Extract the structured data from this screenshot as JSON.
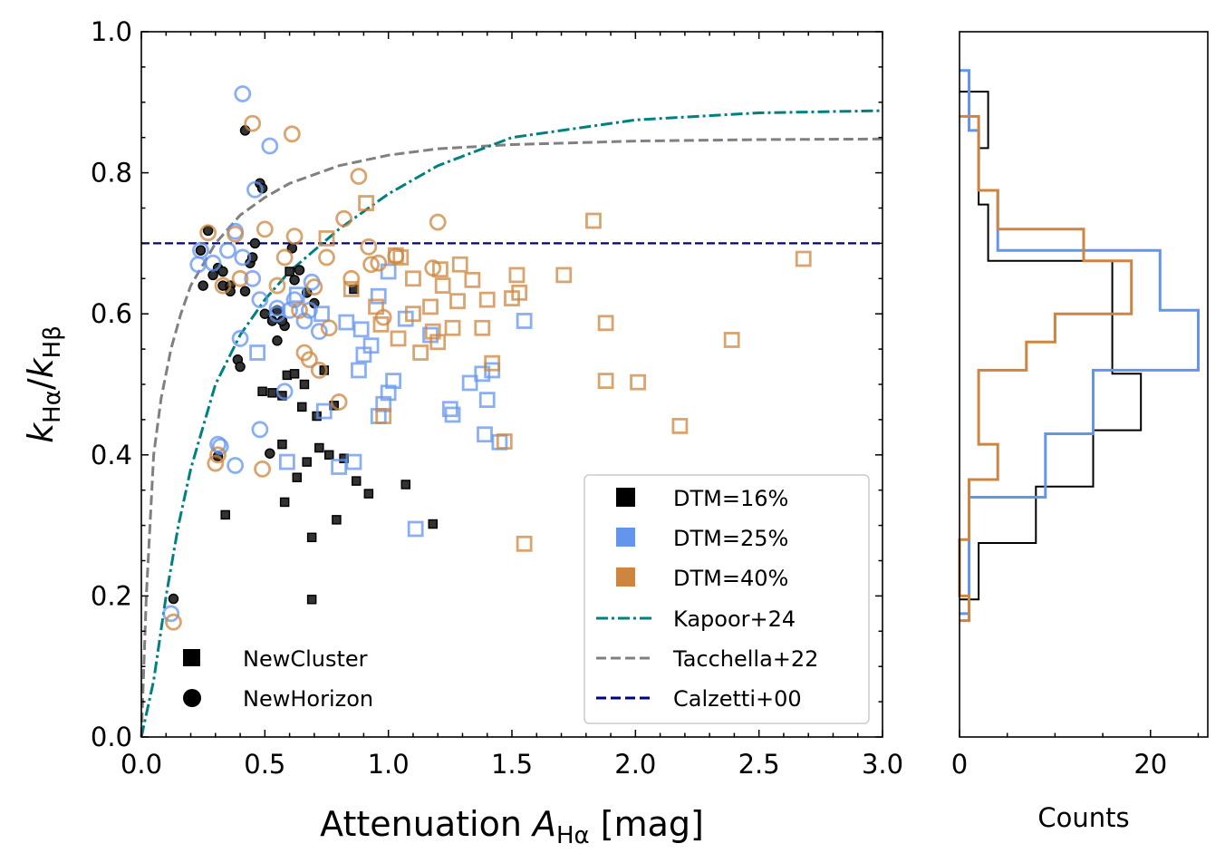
{
  "chart_data": {
    "type": "scatter",
    "xlabel": "Attenuation A_Hα [mag]",
    "ylabel": "k_Hα/k_Hβ",
    "xlabel_parts": {
      "prefix": "Attenuation ",
      "var": "A",
      "sub": "Hα",
      "suffix": " [mag]"
    },
    "ylabel_parts": {
      "k1": "k",
      "sub1": "Hα",
      "slash": "/",
      "k2": "k",
      "sub2": "Hβ"
    },
    "xlim": [
      0.0,
      3.0
    ],
    "ylim": [
      0.0,
      1.0
    ],
    "xticks": [
      "0.0",
      "0.5",
      "1.0",
      "1.5",
      "2.0",
      "2.5",
      "3.0"
    ],
    "yticks": [
      "0.0",
      "0.2",
      "0.4",
      "0.6",
      "0.8",
      "1.0"
    ],
    "colors": {
      "dtm16": "#000000",
      "dtm25": "#6495ED",
      "dtm40": "#CD853F",
      "kapoor": "#008080",
      "tacchella": "#808080",
      "calzetti": "#000080"
    },
    "legend_right": [
      {
        "label": "DTM=16%",
        "kind": "square",
        "color": "#000000"
      },
      {
        "label": "DTM=25%",
        "kind": "square",
        "color": "#6495ED"
      },
      {
        "label": "DTM=40%",
        "kind": "square",
        "color": "#CD853F"
      },
      {
        "label": "Kapoor+24",
        "kind": "dashdot",
        "color": "#008080"
      },
      {
        "label": "Tacchella+22",
        "kind": "dashed",
        "color": "#808080"
      },
      {
        "label": "Calzetti+00",
        "kind": "dashed",
        "color": "#000080"
      }
    ],
    "legend_left": [
      {
        "label": "NewCluster",
        "kind": "square"
      },
      {
        "label": "NewHorizon",
        "kind": "circle"
      }
    ],
    "reference_curves": {
      "calzetti_constant": 0.7,
      "kapoor": {
        "x": [
          0.0,
          0.05,
          0.1,
          0.15,
          0.2,
          0.3,
          0.4,
          0.5,
          0.6,
          0.8,
          1.0,
          1.2,
          1.5,
          2.0,
          2.5,
          3.0
        ],
        "y": [
          0.0,
          0.08,
          0.2,
          0.3,
          0.38,
          0.5,
          0.57,
          0.62,
          0.66,
          0.72,
          0.77,
          0.81,
          0.85,
          0.875,
          0.885,
          0.888
        ]
      },
      "tacchella": {
        "x": [
          0.0,
          0.02,
          0.05,
          0.08,
          0.12,
          0.16,
          0.2,
          0.3,
          0.4,
          0.5,
          0.6,
          0.8,
          1.0,
          1.2,
          1.5,
          2.0,
          2.5,
          3.0
        ],
        "y": [
          0.0,
          0.2,
          0.4,
          0.48,
          0.55,
          0.6,
          0.64,
          0.7,
          0.74,
          0.765,
          0.785,
          0.81,
          0.825,
          0.834,
          0.84,
          0.845,
          0.847,
          0.848
        ]
      }
    },
    "series": [
      {
        "name": "DTM=16%",
        "sim": "NewCluster",
        "marker": "square",
        "color": "#000000",
        "x": [
          0.34,
          0.49,
          0.53,
          0.57,
          0.59,
          0.62,
          0.65,
          0.71,
          0.76,
          0.78,
          0.69,
          0.72,
          0.63,
          0.67,
          0.87,
          0.92,
          0.79,
          0.58,
          0.69,
          1.07,
          1.18,
          0.86,
          0.82,
          0.57,
          0.74,
          0.6,
          0.66
        ],
        "y": [
          0.315,
          0.49,
          0.488,
          0.484,
          0.513,
          0.515,
          0.468,
          0.455,
          0.4,
          0.47,
          0.283,
          0.41,
          0.368,
          0.39,
          0.363,
          0.345,
          0.308,
          0.333,
          0.195,
          0.358,
          0.302,
          0.635,
          0.395,
          0.415,
          0.52,
          0.66,
          0.5
        ]
      },
      {
        "name": "DTM=16%",
        "sim": "NewHorizon",
        "marker": "circle",
        "color": "#000000",
        "x": [
          0.13,
          0.24,
          0.25,
          0.27,
          0.31,
          0.33,
          0.36,
          0.39,
          0.4,
          0.42,
          0.44,
          0.48,
          0.5,
          0.53,
          0.55,
          0.58,
          0.61,
          0.64,
          0.67,
          0.7,
          0.46,
          0.42,
          0.45,
          0.52,
          0.57,
          0.62,
          0.33,
          0.36,
          0.29,
          0.49,
          0.31,
          0.55
        ],
        "y": [
          0.196,
          0.69,
          0.64,
          0.718,
          0.665,
          0.64,
          0.64,
          0.535,
          0.525,
          0.632,
          0.672,
          0.785,
          0.6,
          0.59,
          0.605,
          0.583,
          0.693,
          0.662,
          0.63,
          0.615,
          0.7,
          0.86,
          0.68,
          0.402,
          0.59,
          0.648,
          0.66,
          0.632,
          0.655,
          0.778,
          0.398,
          0.562
        ]
      },
      {
        "name": "DTM=25%",
        "sim": "NewCluster",
        "marker": "square",
        "color": "#6495ED",
        "x": [
          0.47,
          0.59,
          0.63,
          0.73,
          0.8,
          0.86,
          0.89,
          0.93,
          0.96,
          1.0,
          1.02,
          1.07,
          1.11,
          1.26,
          1.33,
          1.39,
          1.4,
          1.45,
          1.55,
          0.74,
          0.83,
          0.9,
          1.0,
          0.98,
          0.96,
          0.88,
          1.25,
          1.38,
          1.17,
          1.42
        ],
        "y": [
          0.545,
          0.39,
          0.627,
          0.6,
          0.383,
          0.39,
          0.578,
          0.555,
          0.625,
          0.66,
          0.505,
          0.593,
          0.295,
          0.457,
          0.502,
          0.429,
          0.478,
          0.418,
          0.59,
          0.462,
          0.588,
          0.542,
          0.488,
          0.472,
          0.455,
          0.52,
          0.465,
          0.515,
          0.57,
          0.52
        ]
      },
      {
        "name": "DTM=25%",
        "sim": "NewHorizon",
        "marker": "circle",
        "color": "#6495ED",
        "x": [
          0.12,
          0.23,
          0.24,
          0.29,
          0.32,
          0.35,
          0.38,
          0.4,
          0.41,
          0.45,
          0.46,
          0.48,
          0.52,
          0.55,
          0.58,
          0.6,
          0.62,
          0.66,
          0.68,
          0.72,
          0.31,
          0.38,
          0.48,
          0.41,
          0.55,
          0.69
        ],
        "y": [
          0.175,
          0.67,
          0.69,
          0.672,
          0.412,
          0.69,
          0.385,
          0.565,
          0.912,
          0.65,
          0.776,
          0.436,
          0.838,
          0.608,
          0.49,
          0.605,
          0.62,
          0.59,
          0.605,
          0.575,
          0.415,
          0.717,
          0.62,
          0.68,
          0.6,
          0.645
        ]
      },
      {
        "name": "DTM=40%",
        "sim": "NewCluster",
        "marker": "square",
        "color": "#CD853F",
        "x": [
          0.75,
          0.85,
          0.91,
          0.95,
          0.98,
          1.03,
          1.04,
          1.1,
          1.13,
          1.17,
          1.18,
          1.21,
          1.26,
          1.29,
          1.34,
          1.38,
          1.42,
          1.5,
          1.52,
          1.53,
          1.71,
          1.83,
          1.88,
          1.88,
          2.01,
          2.18,
          2.39,
          2.68,
          1.55,
          1.47,
          1.05,
          1.2,
          1.4,
          1.28,
          0.97,
          1.1,
          1.22
        ],
        "y": [
          0.707,
          0.635,
          0.757,
          0.61,
          0.455,
          0.683,
          0.565,
          0.65,
          0.545,
          0.61,
          0.575,
          0.663,
          0.58,
          0.67,
          0.648,
          0.58,
          0.53,
          0.622,
          0.655,
          0.63,
          0.655,
          0.732,
          0.587,
          0.505,
          0.503,
          0.441,
          0.563,
          0.678,
          0.274,
          0.419,
          0.68,
          0.56,
          0.62,
          0.618,
          0.585,
          0.6,
          0.64
        ]
      },
      {
        "name": "DTM=40%",
        "sim": "NewHorizon",
        "marker": "circle",
        "color": "#CD853F",
        "x": [
          0.13,
          0.27,
          0.3,
          0.33,
          0.38,
          0.45,
          0.49,
          0.5,
          0.55,
          0.61,
          0.62,
          0.68,
          0.7,
          0.75,
          0.8,
          0.82,
          0.88,
          0.92,
          0.96,
          0.98,
          1.2,
          1.03,
          0.31,
          0.4,
          0.58,
          0.64,
          0.72,
          0.85,
          0.93,
          1.18,
          0.66,
          0.76
        ],
        "y": [
          0.163,
          0.715,
          0.388,
          0.64,
          0.713,
          0.87,
          0.38,
          0.72,
          0.64,
          0.855,
          0.71,
          0.535,
          0.638,
          0.68,
          0.475,
          0.735,
          0.795,
          0.695,
          0.672,
          0.595,
          0.73,
          0.682,
          0.4,
          0.65,
          0.68,
          0.605,
          0.52,
          0.65,
          0.67,
          0.665,
          0.545,
          0.58
        ]
      }
    ],
    "histogram": {
      "type": "histogram",
      "orientation": "horizontal",
      "xlabel": "Counts",
      "xticks": [
        "0",
        "20"
      ],
      "xlim": [
        0,
        26
      ],
      "bins": {
        "DTM=16%": [
          0.15,
          0.95
        ],
        "DTM=25%": [
          0.15,
          0.95
        ],
        "DTM=40%": [
          0.15,
          0.95
        ]
      },
      "series": [
        {
          "name": "DTM=16%",
          "color": "#000000",
          "edges": [
            0.195,
            0.275,
            0.355,
            0.435,
            0.515,
            0.595,
            0.675,
            0.755,
            0.835,
            0.915
          ],
          "counts": [
            2,
            8,
            14,
            19,
            16,
            16,
            3,
            2,
            3
          ]
        },
        {
          "name": "DTM=25%",
          "color": "#6495ED",
          "edges": [
            0.175,
            0.34,
            0.43,
            0.52,
            0.605,
            0.69,
            0.775,
            0.86,
            0.945
          ],
          "counts": [
            1,
            9,
            14,
            25,
            21,
            4,
            2,
            1
          ]
        },
        {
          "name": "DTM=40%",
          "color": "#CD853F",
          "edges": [
            0.165,
            0.2,
            0.28,
            0.365,
            0.415,
            0.455,
            0.52,
            0.56,
            0.6,
            0.675,
            0.72,
            0.775,
            0.81,
            0.88
          ],
          "counts": [
            1,
            0,
            1,
            4,
            2,
            2,
            7,
            10,
            18,
            13,
            4,
            2,
            2
          ]
        }
      ]
    }
  }
}
